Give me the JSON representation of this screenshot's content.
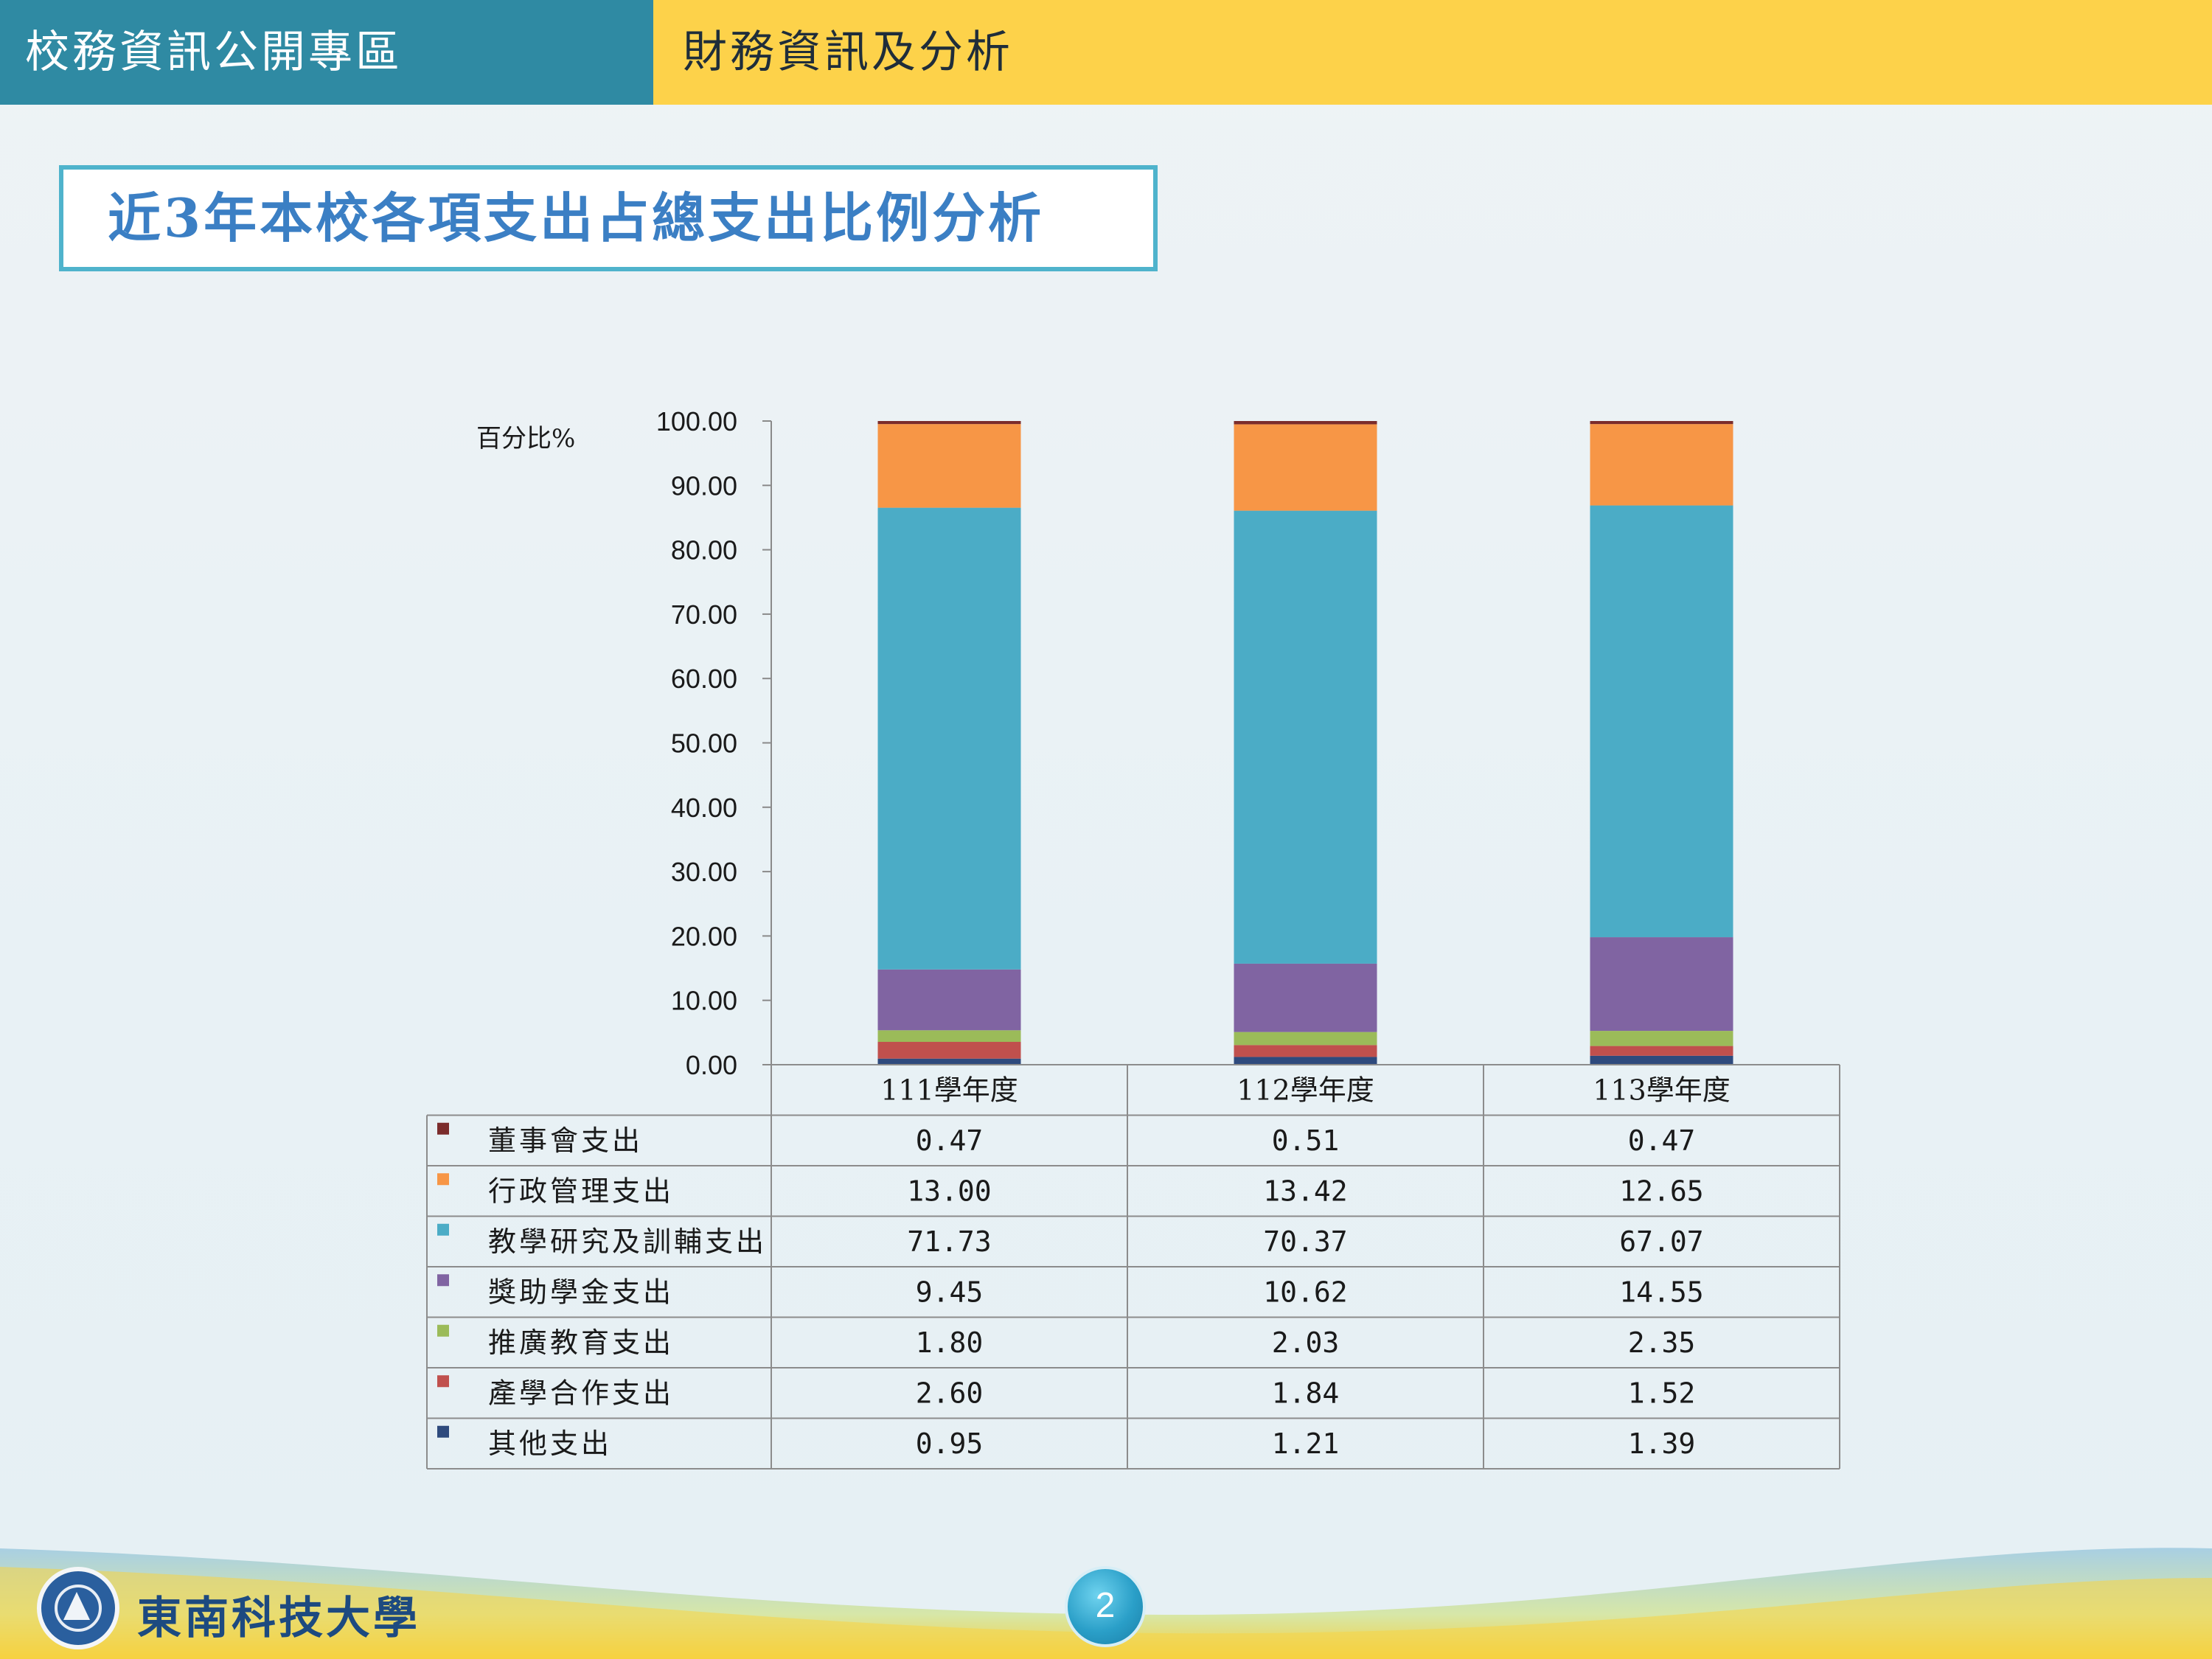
{
  "header": {
    "left_title": "校務資訊公開專區",
    "right_title": "財務資訊及分析"
  },
  "page_title": "近3年本校各項支出占總支出比例分析",
  "footer": {
    "university_name": "東南科技大學",
    "page_number": "2"
  },
  "colors": {
    "header_left_bg": "#2f8aa3",
    "header_right_bg": "#fdd24a",
    "title_text": "#3b7fc4"
  },
  "chart_data": {
    "type": "bar",
    "stacked": true,
    "ylabel": "百分比%",
    "ylim": [
      0,
      100
    ],
    "yticks": [
      "0.00",
      "10.00",
      "20.00",
      "30.00",
      "40.00",
      "50.00",
      "60.00",
      "70.00",
      "80.00",
      "90.00",
      "100.00"
    ],
    "categories": [
      "111學年度",
      "112學年度",
      "113學年度"
    ],
    "legend_placement": "table-below",
    "series": [
      {
        "name": "其他支出",
        "color": "#2e4a7d",
        "values": [
          0.95,
          1.21,
          1.39
        ],
        "labels": [
          "0.95",
          "1.21",
          "1.39"
        ]
      },
      {
        "name": "產學合作支出",
        "color": "#c0504d",
        "values": [
          2.6,
          1.84,
          1.52
        ],
        "labels": [
          "2.60",
          "1.84",
          "1.52"
        ]
      },
      {
        "name": "推廣教育支出",
        "color": "#9bbb59",
        "values": [
          1.8,
          2.03,
          2.35
        ],
        "labels": [
          "1.80",
          "2.03",
          "2.35"
        ]
      },
      {
        "name": "獎助學金支出",
        "color": "#8064a2",
        "values": [
          9.45,
          10.62,
          14.55
        ],
        "labels": [
          "9.45",
          "10.62",
          "14.55"
        ]
      },
      {
        "name": "教學研究及訓輔支出",
        "color": "#4bacc6",
        "values": [
          71.73,
          70.37,
          67.07
        ],
        "labels": [
          "71.73",
          "70.37",
          "67.07"
        ]
      },
      {
        "name": "行政管理支出",
        "color": "#f79646",
        "values": [
          13.0,
          13.42,
          12.65
        ],
        "labels": [
          "13.00",
          "13.42",
          "12.65"
        ]
      },
      {
        "name": "董事會支出",
        "color": "#7b2c2c",
        "values": [
          0.47,
          0.51,
          0.47
        ],
        "labels": [
          "0.47",
          "0.51",
          "0.47"
        ]
      }
    ],
    "table_row_order": [
      "董事會支出",
      "行政管理支出",
      "教學研究及訓輔支出",
      "獎助學金支出",
      "推廣教育支出",
      "產學合作支出",
      "其他支出"
    ]
  }
}
